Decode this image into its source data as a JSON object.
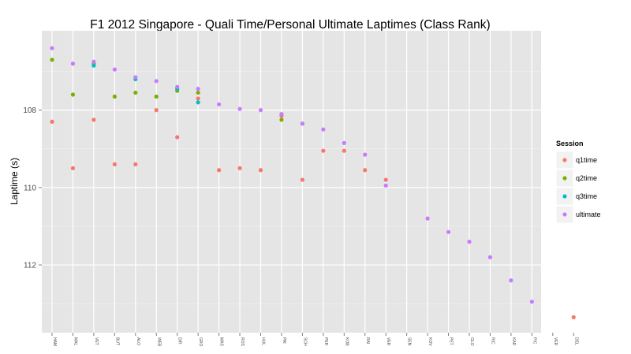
{
  "chart_data": {
    "type": "scatter",
    "title": "F1  2012 Singapore - Quali Time/Personal Ultimate Laptimes (Class Rank)",
    "xlabel": "",
    "ylabel": "Laptime (s)",
    "ylim": [
      105.95,
      113.75
    ],
    "y_reversed": true,
    "y_ticks": [
      108,
      110,
      112
    ],
    "grid": true,
    "legend_placement": "right",
    "legend_title": "Session",
    "categories": [
      "HAM",
      "MAL",
      "VET",
      "BUT",
      "ALO",
      "WEB",
      "DIR",
      "GRO",
      "MAS",
      "ROS",
      "HUL",
      "PAI",
      "SCH",
      "PER",
      "KOB",
      "RAI",
      "VER",
      "SEN",
      "KOV",
      "PET",
      "GLO",
      "RIC",
      "KAR",
      "PIC",
      "VER",
      "DEL"
    ],
    "series": [
      {
        "name": "q1time",
        "color": "#F8766D",
        "values": [
          108.3,
          109.5,
          108.25,
          109.4,
          109.4,
          108.0,
          108.7,
          107.7,
          109.55,
          109.5,
          109.55,
          108.15,
          109.8,
          109.05,
          109.05,
          109.55,
          109.8,
          null,
          null,
          null,
          null,
          null,
          null,
          null,
          null,
          113.35
        ]
      },
      {
        "name": "q2time",
        "color": "#7CAE00",
        "values": [
          106.7,
          107.6,
          106.8,
          107.65,
          107.55,
          107.65,
          107.5,
          107.55,
          null,
          null,
          null,
          108.25,
          108.35,
          null,
          null,
          null,
          null,
          null,
          null,
          null,
          null,
          null,
          null,
          null,
          null,
          null
        ]
      },
      {
        "name": "q3time",
        "color": "#00BFC4",
        "values": [
          null,
          null,
          106.85,
          null,
          107.2,
          null,
          107.45,
          107.8,
          null,
          null,
          null,
          null,
          null,
          null,
          null,
          null,
          null,
          null,
          null,
          null,
          null,
          null,
          null,
          null,
          null,
          null
        ]
      },
      {
        "name": "ultimate",
        "color": "#C77CFF",
        "values": [
          106.4,
          106.8,
          106.75,
          106.95,
          107.15,
          107.25,
          107.4,
          107.45,
          107.85,
          107.97,
          108.0,
          108.1,
          108.35,
          108.5,
          108.85,
          109.15,
          109.95,
          null,
          110.8,
          111.15,
          111.4,
          111.8,
          112.4,
          112.95,
          null,
          null
        ]
      }
    ]
  }
}
